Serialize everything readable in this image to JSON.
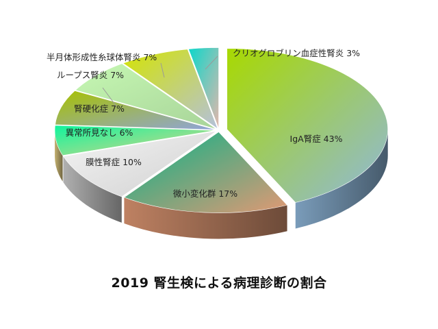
{
  "chart_data": {
    "type": "pie",
    "title": "2019  腎生検による病理診断の割合",
    "slices": [
      {
        "name": "IgA腎症",
        "value": 43,
        "label": "IgA腎症 43%",
        "color": "#9cc8ee"
      },
      {
        "name": "微小変化群",
        "value": 17,
        "label": "微小変化群 17%",
        "color": "#f3a67e"
      },
      {
        "name": "膜性腎症",
        "value": 10,
        "label": "膜性腎症 10%",
        "color": "#e2e2e2"
      },
      {
        "name": "異常所見なし",
        "value": 6,
        "label": "異常所見なし 6%",
        "color": "#fbe391"
      },
      {
        "name": "腎硬化症",
        "value": 7,
        "label": "腎硬化症 7%",
        "color": "#9bb2ee"
      },
      {
        "name": "ループス腎炎",
        "value": 7,
        "label": "ループス腎炎 7%",
        "color": "#b7e6a6"
      },
      {
        "name": "半月体形成性糸球体腎炎",
        "value": 7,
        "label": "半月体形成性糸球体腎炎 7%",
        "color": "#c4d2ee"
      },
      {
        "name": "クリオグロブリン血症性腎炎",
        "value": 3,
        "label": "クリオグロブリン血症性腎炎 3%",
        "color": "#f7c7bb"
      }
    ]
  }
}
